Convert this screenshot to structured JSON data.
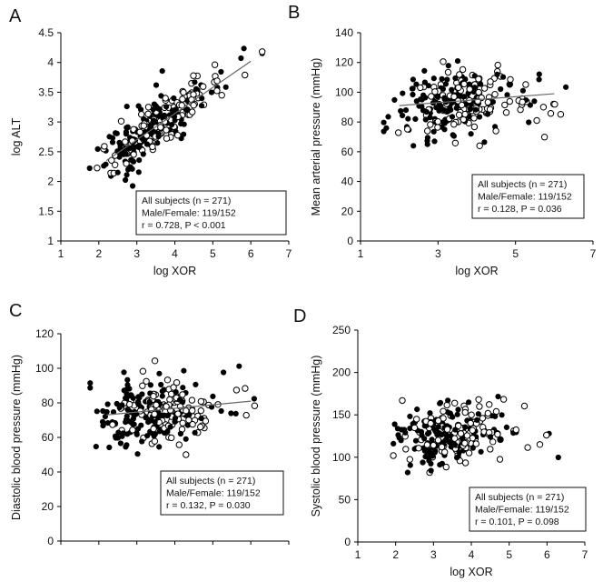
{
  "chart_data": [
    {
      "panel": "A",
      "type": "scatter",
      "xlabel": "log XOR",
      "ylabel": "log ALT",
      "xlim": [
        1,
        7
      ],
      "ylim": [
        1,
        4.5
      ],
      "xticks": [
        "1",
        "2",
        "3",
        "4",
        "5",
        "6",
        "7"
      ],
      "yticks": [
        "1",
        "1.5",
        "2",
        "2.5",
        "3",
        "3.5",
        "4",
        "4.5"
      ],
      "yticks_numeric": [
        1,
        1.5,
        2,
        2.5,
        3,
        3.5,
        4,
        4.5
      ],
      "xticks_numeric": [
        1,
        2,
        3,
        4,
        5,
        6,
        7
      ],
      "stats": [
        "All subjects (n = 271)",
        "Male/Female: 119/152",
        "r = 0.728, P < 0.001"
      ],
      "fit": {
        "x1": 2.2,
        "y1": 2.35,
        "x2": 6.0,
        "y2": 4.02
      },
      "cloud": {
        "seed": 11,
        "kind": "alt"
      }
    },
    {
      "panel": "B",
      "type": "scatter",
      "xlabel": "log XOR",
      "ylabel": "Mean arterial pressure (mmHg)",
      "xlim": [
        1,
        7
      ],
      "ylim": [
        0,
        140
      ],
      "xticks": [
        "1",
        "3",
        "5",
        "7"
      ],
      "xticks_numeric": [
        1,
        3,
        5,
        7
      ],
      "yticks": [
        "0",
        "20",
        "40",
        "60",
        "80",
        "100",
        "120",
        "140"
      ],
      "yticks_numeric": [
        0,
        20,
        40,
        60,
        80,
        100,
        120,
        140
      ],
      "stats": [
        "All subjects (n = 271)",
        "Male/Female: 119/152",
        "r = 0.128, P = 0.036"
      ],
      "fit": {
        "x1": 2.0,
        "y1": 91,
        "x2": 6.0,
        "y2": 99
      },
      "cloud": {
        "seed": 23,
        "kind": "map"
      }
    },
    {
      "panel": "C",
      "type": "scatter",
      "xlabel": "",
      "ylabel": "Diastolic blood pressure (mmHg)",
      "xlim": [
        1,
        7
      ],
      "ylim": [
        0,
        120
      ],
      "xticks": [
        "",
        "",
        "",
        "",
        "",
        "",
        ""
      ],
      "xticks_numeric": [
        1,
        2,
        3,
        4,
        5,
        6,
        7
      ],
      "yticks": [
        "0",
        "20",
        "40",
        "60",
        "80",
        "100",
        "120"
      ],
      "yticks_numeric": [
        0,
        20,
        40,
        60,
        80,
        100,
        120
      ],
      "stats": [
        "All subjects (n = 271)",
        "Male/Female: 119/152",
        "r = 0.132, P = 0.030"
      ],
      "fit": {
        "x1": 2.2,
        "y1": 73,
        "x2": 6.0,
        "y2": 81
      },
      "cloud": {
        "seed": 37,
        "kind": "dbp"
      }
    },
    {
      "panel": "D",
      "type": "scatter",
      "xlabel": "log XOR",
      "ylabel": "Systolic blood pressure (mmHg)",
      "xlim": [
        1,
        7
      ],
      "ylim": [
        0,
        250
      ],
      "xticks": [
        "1",
        "2",
        "3",
        "4",
        "5",
        "6",
        "7"
      ],
      "xticks_numeric": [
        1,
        2,
        3,
        4,
        5,
        6,
        7
      ],
      "yticks": [
        "0",
        "50",
        "100",
        "150",
        "200",
        "250"
      ],
      "yticks_numeric": [
        0,
        50,
        100,
        150,
        200,
        250
      ],
      "stats": [
        "All subjects (n = 271)",
        "Male/Female: 119/152",
        "r = 0.101, P = 0.098"
      ],
      "fit": null,
      "cloud": {
        "seed": 53,
        "kind": "sbp"
      }
    }
  ]
}
